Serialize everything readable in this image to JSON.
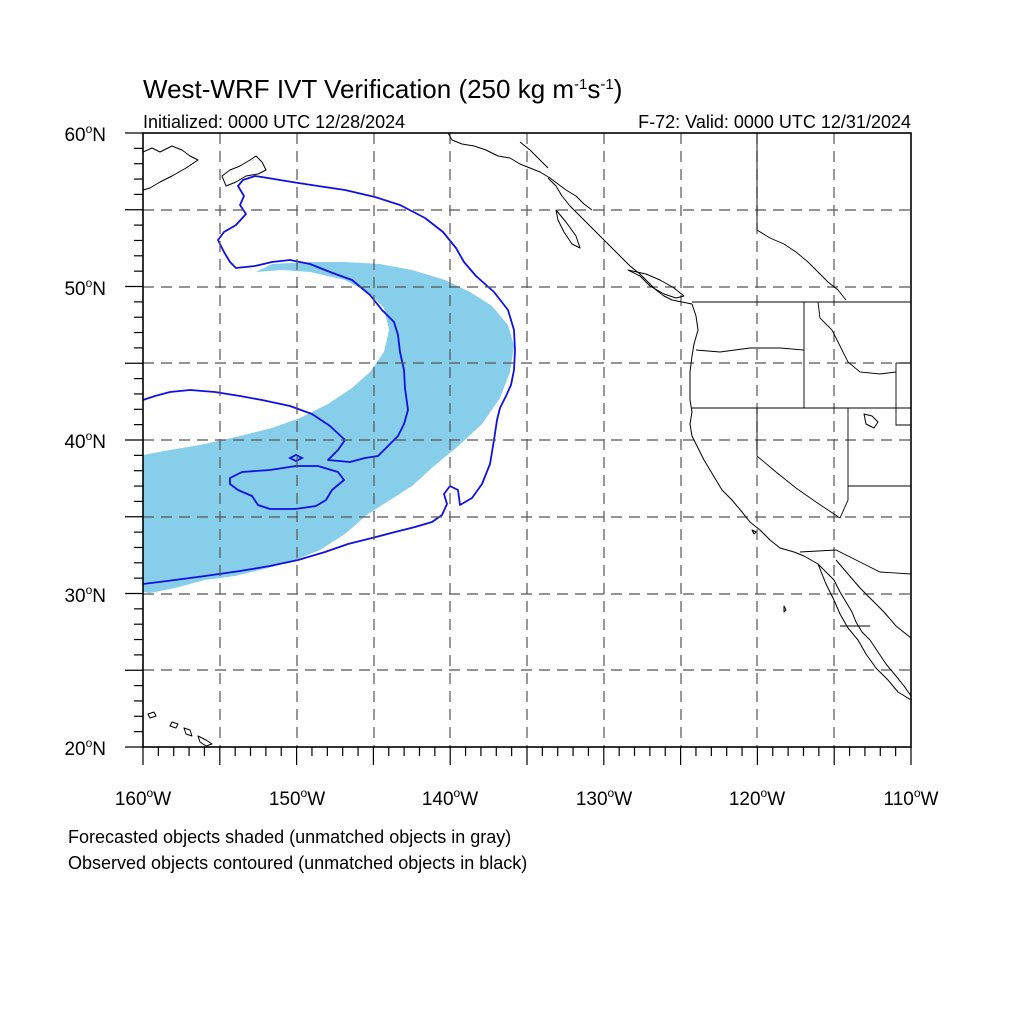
{
  "figure": {
    "title_prefix": "West-WRF IVT Verification (250 kg m",
    "title_exp1": "-1",
    "title_mid": "s",
    "title_exp2": "-1",
    "title_suffix": ")",
    "subtitle_left": "Initialized: 0000 UTC 12/28/2024",
    "subtitle_right": "F-72: Valid: 0000 UTC 12/31/2024",
    "notes": [
      "Forecasted objects shaded (unmatched objects in gray)",
      "Observed objects contoured (unmatched objects in black)"
    ]
  },
  "map": {
    "lon_range": [
      -160,
      -110
    ],
    "lat_range": [
      20,
      60
    ],
    "lon_tick_labels": [
      {
        "deg": "160",
        "hemi": "W"
      },
      {
        "deg": "150",
        "hemi": "W"
      },
      {
        "deg": "140",
        "hemi": "W"
      },
      {
        "deg": "130",
        "hemi": "W"
      },
      {
        "deg": "120",
        "hemi": "W"
      },
      {
        "deg": "110",
        "hemi": "W"
      }
    ],
    "lat_tick_labels": [
      {
        "deg": "20",
        "hemi": "N"
      },
      {
        "deg": "30",
        "hemi": "N"
      },
      {
        "deg": "40",
        "hemi": "N"
      },
      {
        "deg": "50",
        "hemi": "N"
      },
      {
        "deg": "60",
        "hemi": "N"
      }
    ],
    "grid": "dashed every 5 degrees",
    "colors": {
      "forecast_fill": "#87ceeb",
      "observed_contour": "#1010e0",
      "coastline": "#000000",
      "grid": "#555555"
    }
  }
}
